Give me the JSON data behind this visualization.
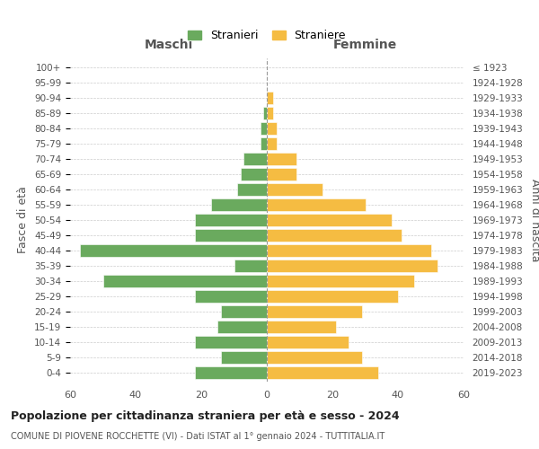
{
  "age_groups": [
    "0-4",
    "5-9",
    "10-14",
    "15-19",
    "20-24",
    "25-29",
    "30-34",
    "35-39",
    "40-44",
    "45-49",
    "50-54",
    "55-59",
    "60-64",
    "65-69",
    "70-74",
    "75-79",
    "80-84",
    "85-89",
    "90-94",
    "95-99",
    "100+"
  ],
  "birth_years": [
    "2019-2023",
    "2014-2018",
    "2009-2013",
    "2004-2008",
    "1999-2003",
    "1994-1998",
    "1989-1993",
    "1984-1988",
    "1979-1983",
    "1974-1978",
    "1969-1973",
    "1964-1968",
    "1959-1963",
    "1954-1958",
    "1949-1953",
    "1944-1948",
    "1939-1943",
    "1934-1938",
    "1929-1933",
    "1924-1928",
    "≤ 1923"
  ],
  "maschi": [
    22,
    14,
    22,
    15,
    14,
    22,
    50,
    10,
    57,
    22,
    22,
    17,
    9,
    8,
    7,
    2,
    2,
    1,
    0,
    0,
    0
  ],
  "femmine": [
    34,
    29,
    25,
    21,
    29,
    40,
    45,
    52,
    50,
    41,
    38,
    30,
    17,
    9,
    9,
    3,
    3,
    2,
    2,
    0,
    0
  ],
  "male_color": "#6aaa5e",
  "female_color": "#f5bc42",
  "title": "Popolazione per cittadinanza straniera per età e sesso - 2024",
  "subtitle": "COMUNE DI PIOVENE ROCCHETTE (VI) - Dati ISTAT al 1° gennaio 2024 - TUTTITALIA.IT",
  "xlabel_left": "Maschi",
  "xlabel_right": "Femmine",
  "ylabel_left": "Fasce di età",
  "ylabel_right": "Anni di nascita",
  "legend_male": "Stranieri",
  "legend_female": "Straniere",
  "xlim": 60,
  "background_color": "#ffffff",
  "grid_color": "#cccccc"
}
